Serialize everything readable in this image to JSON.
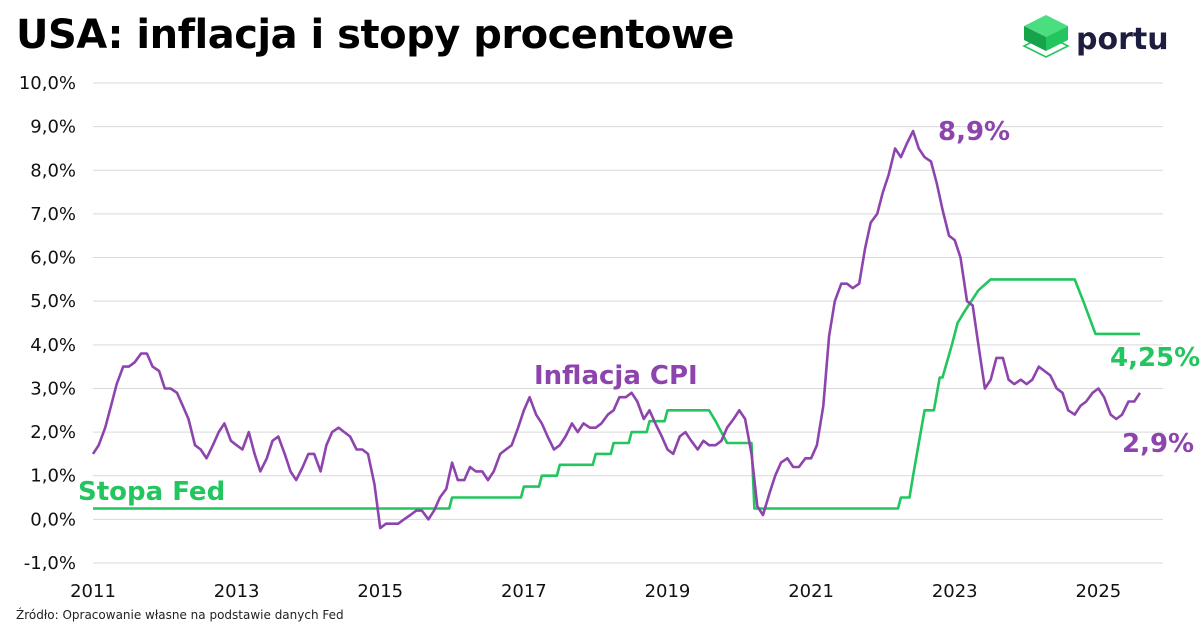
{
  "header": {
    "title": "USA: inflacja i stopy procentowe"
  },
  "logo": {
    "text": "portu",
    "icon": "stacked-cube-icon"
  },
  "source": "Źródło: Opracowanie własne na podstawie danych Fed",
  "colors": {
    "cpi": "#8e44ad",
    "fed": "#22c55e",
    "grid": "#d9d9d9"
  },
  "chart_data": {
    "type": "line",
    "title": "USA: inflacja i stopy procentowe",
    "xlabel": "",
    "ylabel": "",
    "ylim": [
      -1,
      10
    ],
    "xlim": [
      2011,
      2025.9
    ],
    "grid": true,
    "y_ticks": [
      "-1,0%",
      "0,0%",
      "1,0%",
      "2,0%",
      "3,0%",
      "4,0%",
      "5,0%",
      "6,0%",
      "7,0%",
      "8,0%",
      "9,0%",
      "10,0%"
    ],
    "x_ticks": [
      "2011",
      "2013",
      "2015",
      "2017",
      "2019",
      "2021",
      "2023",
      "2025"
    ],
    "annotations": [
      {
        "text": "Inflacja CPI",
        "series": "cpi"
      },
      {
        "text": "Stopa Fed",
        "series": "fed"
      },
      {
        "text": "8,9%",
        "series": "cpi"
      },
      {
        "text": "4,25%",
        "series": "fed"
      },
      {
        "text": "2,9%",
        "series": "cpi"
      }
    ],
    "series": [
      {
        "id": "cpi",
        "x": [
          2011.0,
          2011.08,
          2011.17,
          2011.25,
          2011.33,
          2011.42,
          2011.5,
          2011.58,
          2011.67,
          2011.75,
          2011.83,
          2011.92,
          2012.0,
          2012.08,
          2012.17,
          2012.25,
          2012.33,
          2012.42,
          2012.5,
          2012.58,
          2012.67,
          2012.75,
          2012.83,
          2012.92,
          2013.0,
          2013.08,
          2013.17,
          2013.25,
          2013.33,
          2013.42,
          2013.5,
          2013.58,
          2013.67,
          2013.75,
          2013.83,
          2013.92,
          2014.0,
          2014.08,
          2014.17,
          2014.25,
          2014.33,
          2014.42,
          2014.5,
          2014.58,
          2014.67,
          2014.75,
          2014.83,
          2014.92,
          2015.0,
          2015.08,
          2015.17,
          2015.25,
          2015.33,
          2015.42,
          2015.5,
          2015.58,
          2015.67,
          2015.75,
          2015.83,
          2015.92,
          2016.0,
          2016.08,
          2016.17,
          2016.25,
          2016.33,
          2016.42,
          2016.5,
          2016.58,
          2016.67,
          2016.75,
          2016.83,
          2016.92,
          2017.0,
          2017.08,
          2017.17,
          2017.25,
          2017.33,
          2017.42,
          2017.5,
          2017.58,
          2017.67,
          2017.75,
          2017.83,
          2017.92,
          2018.0,
          2018.08,
          2018.17,
          2018.25,
          2018.33,
          2018.42,
          2018.5,
          2018.58,
          2018.67,
          2018.75,
          2018.83,
          2018.92,
          2019.0,
          2019.08,
          2019.17,
          2019.25,
          2019.33,
          2019.42,
          2019.5,
          2019.58,
          2019.67,
          2019.75,
          2019.83,
          2019.92,
          2020.0,
          2020.08,
          2020.17,
          2020.25,
          2020.33,
          2020.42,
          2020.5,
          2020.58,
          2020.67,
          2020.75,
          2020.83,
          2020.92,
          2021.0,
          2021.08,
          2021.17,
          2021.25,
          2021.33,
          2021.42,
          2021.5,
          2021.58,
          2021.67,
          2021.75,
          2021.83,
          2021.92,
          2022.0,
          2022.08,
          2022.17,
          2022.25,
          2022.33,
          2022.42,
          2022.5,
          2022.58,
          2022.67,
          2022.75,
          2022.83,
          2022.92,
          2023.0,
          2023.08,
          2023.17,
          2023.25,
          2023.33,
          2023.42,
          2023.5,
          2023.58,
          2023.67,
          2023.75,
          2023.83,
          2023.92,
          2024.0,
          2024.08,
          2024.17,
          2024.25,
          2024.33,
          2024.42,
          2024.5,
          2024.58,
          2024.67,
          2024.75,
          2024.83,
          2024.92,
          2025.0,
          2025.08,
          2025.17,
          2025.25,
          2025.33,
          2025.42,
          2025.5,
          2025.58
        ],
        "values": [
          1.5,
          1.7,
          2.1,
          2.6,
          3.1,
          3.5,
          3.5,
          3.6,
          3.8,
          3.8,
          3.5,
          3.4,
          3.0,
          3.0,
          2.9,
          2.6,
          2.3,
          1.7,
          1.6,
          1.4,
          1.7,
          2.0,
          2.2,
          1.8,
          1.7,
          1.6,
          2.0,
          1.5,
          1.1,
          1.4,
          1.8,
          1.9,
          1.5,
          1.1,
          0.9,
          1.2,
          1.5,
          1.5,
          1.1,
          1.7,
          2.0,
          2.1,
          2.0,
          1.9,
          1.6,
          1.6,
          1.5,
          0.8,
          -0.2,
          -0.1,
          -0.1,
          -0.1,
          0.0,
          0.1,
          0.2,
          0.2,
          0.0,
          0.2,
          0.5,
          0.7,
          1.3,
          0.9,
          0.9,
          1.2,
          1.1,
          1.1,
          0.9,
          1.1,
          1.5,
          1.6,
          1.7,
          2.1,
          2.5,
          2.8,
          2.4,
          2.2,
          1.9,
          1.6,
          1.7,
          1.9,
          2.2,
          2.0,
          2.2,
          2.1,
          2.1,
          2.2,
          2.4,
          2.5,
          2.8,
          2.8,
          2.9,
          2.7,
          2.3,
          2.5,
          2.2,
          1.9,
          1.6,
          1.5,
          1.9,
          2.0,
          1.8,
          1.6,
          1.8,
          1.7,
          1.7,
          1.8,
          2.1,
          2.3,
          2.5,
          2.3,
          1.5,
          0.3,
          0.1,
          0.6,
          1.0,
          1.3,
          1.4,
          1.2,
          1.2,
          1.4,
          1.4,
          1.7,
          2.6,
          4.2,
          5.0,
          5.4,
          5.4,
          5.3,
          5.4,
          6.2,
          6.8,
          7.0,
          7.5,
          7.9,
          8.5,
          8.3,
          8.6,
          8.9,
          8.5,
          8.3,
          8.2,
          7.7,
          7.1,
          6.5,
          6.4,
          6.0,
          5.0,
          4.9,
          4.0,
          3.0,
          3.2,
          3.7,
          3.7,
          3.2,
          3.1,
          3.2,
          3.1,
          3.2,
          3.5,
          3.4,
          3.3,
          3.0,
          2.9,
          2.5,
          2.4,
          2.6,
          2.7,
          2.9,
          3.0,
          2.8,
          2.4,
          2.3,
          2.4,
          2.7,
          2.7,
          2.9
        ]
      },
      {
        "id": "fed",
        "x": [
          2011.0,
          2015.96,
          2016.0,
          2016.96,
          2017.0,
          2017.21,
          2017.25,
          2017.46,
          2017.5,
          2017.96,
          2018.0,
          2018.21,
          2018.25,
          2018.46,
          2018.5,
          2018.71,
          2018.75,
          2018.96,
          2019.0,
          2019.58,
          2019.67,
          2019.75,
          2019.83,
          2020.17,
          2020.21,
          2021.0,
          2022.0,
          2022.21,
          2022.25,
          2022.37,
          2022.42,
          2022.5,
          2022.58,
          2022.71,
          2022.79,
          2022.83,
          2022.96,
          2023.04,
          2023.13,
          2023.33,
          2023.5,
          2024.0,
          2024.67,
          2024.79,
          2024.96,
          2025.58
        ],
        "values": [
          0.25,
          0.25,
          0.5,
          0.5,
          0.75,
          0.75,
          1.0,
          1.0,
          1.25,
          1.25,
          1.5,
          1.5,
          1.75,
          1.75,
          2.0,
          2.0,
          2.25,
          2.25,
          2.5,
          2.5,
          2.25,
          2.0,
          1.75,
          1.75,
          0.25,
          0.25,
          0.25,
          0.25,
          0.5,
          0.5,
          1.0,
          1.75,
          2.5,
          2.5,
          3.25,
          3.25,
          4.0,
          4.5,
          4.75,
          5.25,
          5.5,
          5.5,
          5.5,
          5.0,
          4.25,
          4.25
        ]
      }
    ]
  }
}
